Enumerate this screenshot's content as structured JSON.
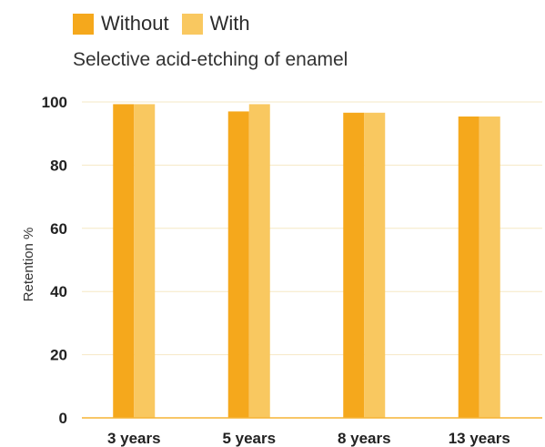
{
  "chart_data": {
    "type": "bar",
    "title": "Selective acid-etching of enamel",
    "xlabel": "",
    "ylabel": "Retention %",
    "categories": [
      "3 years",
      "5 years",
      "8 years",
      "13 years"
    ],
    "series": [
      {
        "name": "Without",
        "color": "#F5A81C",
        "values": [
          99.3,
          97.0,
          96.6,
          95.4
        ]
      },
      {
        "name": "With",
        "color": "#F9C860",
        "values": [
          99.3,
          99.3,
          96.6,
          95.4
        ]
      }
    ],
    "ylim": [
      0,
      100
    ],
    "yticks": [
      0,
      20,
      40,
      60,
      80,
      100
    ],
    "grid": true,
    "legend_position": "top-left"
  }
}
